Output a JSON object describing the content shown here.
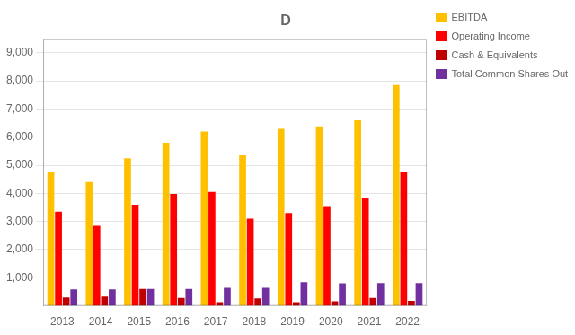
{
  "chart_data": {
    "type": "bar",
    "title": "D",
    "categories": [
      "2013",
      "2014",
      "2015",
      "2016",
      "2017",
      "2018",
      "2019",
      "2020",
      "2021",
      "2022"
    ],
    "series": [
      {
        "name": "EBITDA",
        "color": "#FFC000",
        "values": [
          4750,
          4400,
          5250,
          5800,
          6200,
          5350,
          6300,
          6380,
          6600,
          7850
        ]
      },
      {
        "name": "Operating Income",
        "color": "#FF0000",
        "values": [
          3350,
          2850,
          3600,
          3980,
          4050,
          3100,
          3300,
          3550,
          3820,
          4750
        ]
      },
      {
        "name": "Cash & Equivalents",
        "color": "#C00000",
        "values": [
          300,
          330,
          600,
          280,
          130,
          270,
          130,
          165,
          280,
          175
        ]
      },
      {
        "name": "Total Common Shares Outstanding",
        "color": "#7030A0",
        "values": [
          590,
          590,
          600,
          600,
          640,
          640,
          840,
          800,
          810,
          810
        ]
      }
    ],
    "ylim": [
      0,
      9500
    ],
    "yticks": [
      {
        "value": 1000,
        "label": "1,000"
      },
      {
        "value": 2000,
        "label": "2,000"
      },
      {
        "value": 3000,
        "label": "3,000"
      },
      {
        "value": 4000,
        "label": "4,000"
      },
      {
        "value": 5000,
        "label": "5,000"
      },
      {
        "value": 6000,
        "label": "6,000"
      },
      {
        "value": 7000,
        "label": "7,000"
      },
      {
        "value": 8000,
        "label": "8,000"
      },
      {
        "value": 9000,
        "label": "9,000"
      }
    ],
    "grid": true,
    "legend": "right"
  }
}
